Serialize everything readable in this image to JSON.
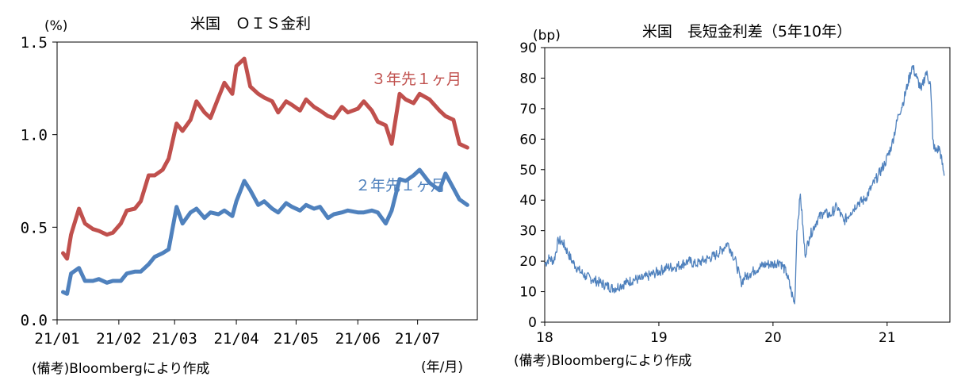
{
  "chart_data": [
    {
      "type": "line",
      "title": "米国　ＯＩＳ金利",
      "ylabel": "(%)",
      "xlabel": "(年/月)",
      "note": "(備考)Bloombergにより作成",
      "ylim": [
        0.0,
        1.5
      ],
      "yticks": [
        "0.0",
        "0.5",
        "1.0",
        "1.5"
      ],
      "xticks": [
        "21/01",
        "21/02",
        "21/03",
        "21/04",
        "21/05",
        "21/06",
        "21/07"
      ],
      "grid": false,
      "colors": {
        "series_a": "#c0504d",
        "series_b": "#4f81bd"
      },
      "series": [
        {
          "name": "３年先１ヶ月",
          "x": [
            "2021-01-04",
            "2021-01-06",
            "2021-01-08",
            "2021-01-12",
            "2021-01-15",
            "2021-01-19",
            "2021-01-22",
            "2021-01-26",
            "2021-01-29",
            "2021-02-02",
            "2021-02-05",
            "2021-02-09",
            "2021-02-12",
            "2021-02-16",
            "2021-02-19",
            "2021-02-23",
            "2021-02-26",
            "2021-03-02",
            "2021-03-05",
            "2021-03-09",
            "2021-03-12",
            "2021-03-16",
            "2021-03-19",
            "2021-03-23",
            "2021-03-26",
            "2021-03-30",
            "2021-04-01",
            "2021-04-05",
            "2021-04-08",
            "2021-04-12",
            "2021-04-15",
            "2021-04-19",
            "2021-04-22",
            "2021-04-26",
            "2021-04-29",
            "2021-05-03",
            "2021-05-06",
            "2021-05-10",
            "2021-05-13",
            "2021-05-17",
            "2021-05-20",
            "2021-05-24",
            "2021-05-27",
            "2021-06-01",
            "2021-06-04",
            "2021-06-08",
            "2021-06-11",
            "2021-06-15",
            "2021-06-18",
            "2021-06-22",
            "2021-06-25",
            "2021-06-29",
            "2021-07-02",
            "2021-07-07",
            "2021-07-12",
            "2021-07-15",
            "2021-07-19",
            "2021-07-22",
            "2021-07-26"
          ],
          "values": [
            0.36,
            0.33,
            0.46,
            0.6,
            0.52,
            0.49,
            0.48,
            0.46,
            0.47,
            0.52,
            0.59,
            0.6,
            0.64,
            0.78,
            0.78,
            0.81,
            0.87,
            1.06,
            1.02,
            1.08,
            1.18,
            1.12,
            1.09,
            1.2,
            1.28,
            1.22,
            1.37,
            1.41,
            1.26,
            1.22,
            1.2,
            1.18,
            1.12,
            1.18,
            1.16,
            1.13,
            1.19,
            1.15,
            1.13,
            1.1,
            1.09,
            1.15,
            1.12,
            1.14,
            1.18,
            1.13,
            1.07,
            1.05,
            0.95,
            1.22,
            1.19,
            1.17,
            1.22,
            1.19,
            1.13,
            1.1,
            1.08,
            0.95,
            0.93
          ]
        },
        {
          "name": "２年先１ヶ月",
          "x": [
            "2021-01-04",
            "2021-01-06",
            "2021-01-08",
            "2021-01-12",
            "2021-01-15",
            "2021-01-19",
            "2021-01-22",
            "2021-01-26",
            "2021-01-29",
            "2021-02-02",
            "2021-02-05",
            "2021-02-09",
            "2021-02-12",
            "2021-02-16",
            "2021-02-19",
            "2021-02-23",
            "2021-02-26",
            "2021-03-02",
            "2021-03-05",
            "2021-03-09",
            "2021-03-12",
            "2021-03-16",
            "2021-03-19",
            "2021-03-23",
            "2021-03-26",
            "2021-03-30",
            "2021-04-01",
            "2021-04-05",
            "2021-04-08",
            "2021-04-12",
            "2021-04-15",
            "2021-04-19",
            "2021-04-22",
            "2021-04-26",
            "2021-04-29",
            "2021-05-03",
            "2021-05-06",
            "2021-05-10",
            "2021-05-13",
            "2021-05-17",
            "2021-05-20",
            "2021-05-24",
            "2021-05-27",
            "2021-06-01",
            "2021-06-04",
            "2021-06-08",
            "2021-06-11",
            "2021-06-15",
            "2021-06-18",
            "2021-06-22",
            "2021-06-25",
            "2021-06-29",
            "2021-07-02",
            "2021-07-07",
            "2021-07-12",
            "2021-07-15",
            "2021-07-19",
            "2021-07-22",
            "2021-07-26"
          ],
          "values": [
            0.15,
            0.14,
            0.25,
            0.28,
            0.21,
            0.21,
            0.22,
            0.2,
            0.21,
            0.21,
            0.25,
            0.26,
            0.26,
            0.3,
            0.34,
            0.36,
            0.38,
            0.61,
            0.52,
            0.58,
            0.6,
            0.55,
            0.58,
            0.57,
            0.59,
            0.56,
            0.64,
            0.75,
            0.7,
            0.62,
            0.64,
            0.6,
            0.58,
            0.63,
            0.61,
            0.59,
            0.62,
            0.6,
            0.61,
            0.55,
            0.57,
            0.58,
            0.59,
            0.58,
            0.58,
            0.59,
            0.58,
            0.52,
            0.59,
            0.76,
            0.75,
            0.78,
            0.81,
            0.74,
            0.7,
            0.79,
            0.71,
            0.65,
            0.62
          ]
        }
      ]
    },
    {
      "type": "line",
      "title": "米国　長短金利差（5年10年）",
      "ylabel": "(bp)",
      "note": "(備考)Bloombergにより作成",
      "ylim": [
        0,
        90
      ],
      "yticks": [
        "0",
        "10",
        "20",
        "30",
        "40",
        "50",
        "60",
        "70",
        "80",
        "90"
      ],
      "xticks": [
        "18",
        "19",
        "20",
        "21"
      ],
      "grid": false,
      "colors": {
        "series": "#4f81bd"
      },
      "series": [
        {
          "x": [
            2018.0,
            2018.04,
            2018.08,
            2018.12,
            2018.16,
            2018.2,
            2018.24,
            2018.3,
            2018.36,
            2018.42,
            2018.48,
            2018.54,
            2018.6,
            2018.66,
            2018.72,
            2018.78,
            2018.84,
            2018.9,
            2018.96,
            2019.02,
            2019.08,
            2019.14,
            2019.2,
            2019.26,
            2019.32,
            2019.38,
            2019.44,
            2019.5,
            2019.56,
            2019.6,
            2019.64,
            2019.68,
            2019.72,
            2019.76,
            2019.8,
            2019.84,
            2019.88,
            2019.94,
            2020.0,
            2020.06,
            2020.12,
            2020.16,
            2020.19,
            2020.21,
            2020.24,
            2020.28,
            2020.32,
            2020.38,
            2020.44,
            2020.5,
            2020.56,
            2020.62,
            2020.68,
            2020.74,
            2020.8,
            2020.86,
            2020.92,
            2020.98,
            2021.04,
            2021.1,
            2021.14,
            2021.18,
            2021.22,
            2021.26,
            2021.3,
            2021.34,
            2021.38,
            2021.4,
            2021.42,
            2021.46,
            2021.5
          ],
          "values": [
            19,
            21,
            20,
            27,
            26,
            23,
            20,
            17,
            15,
            14,
            13,
            12,
            11,
            12,
            13,
            14,
            14,
            15,
            16,
            17,
            18,
            18,
            19,
            20,
            19,
            20,
            21,
            22,
            24,
            26,
            23,
            19,
            13,
            15,
            16,
            17,
            18,
            19,
            19,
            20,
            16,
            10,
            6,
            30,
            42,
            22,
            28,
            33,
            36,
            35,
            38,
            33,
            36,
            39,
            40,
            44,
            48,
            52,
            58,
            68,
            72,
            78,
            84,
            80,
            76,
            82,
            78,
            60,
            56,
            57,
            48
          ]
        }
      ]
    }
  ]
}
